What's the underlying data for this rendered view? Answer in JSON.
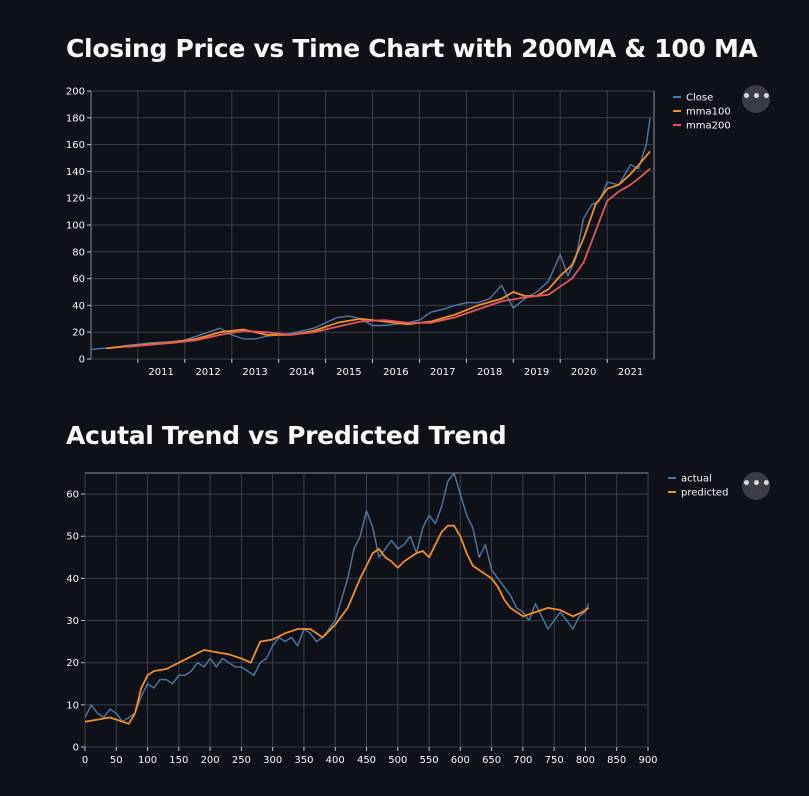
{
  "page": {
    "charts": [
      {
        "title": "Closing Price vs Time Chart with 200MA & 100 MA",
        "more_button": "•••"
      },
      {
        "title": "Acutal Trend vs Predicted Trend",
        "more_button": "•••"
      }
    ]
  },
  "colors": {
    "background": "#0e1117",
    "blue": "#4e79a7",
    "orange": "#f28e2b",
    "red": "#e15759",
    "grid": "#3a3f4b",
    "text": "#fafafa"
  },
  "chart_data": [
    {
      "type": "line",
      "title": "Closing Price vs Time Chart with 200MA & 100 MA",
      "x_type": "date",
      "xlim": [
        "2010-01-01",
        "2021-12-31"
      ],
      "ylim": [
        0,
        200
      ],
      "x_ticks": [
        "2011",
        "2012",
        "2013",
        "2014",
        "2015",
        "2016",
        "2017",
        "2018",
        "2019",
        "2020",
        "2021"
      ],
      "y_ticks": [
        0,
        20,
        40,
        60,
        80,
        100,
        120,
        140,
        160,
        180,
        200
      ],
      "grid": true,
      "legend_position": "top-right",
      "series": [
        {
          "name": "Close",
          "color": "#4e79a7",
          "x": [
            "2010-01",
            "2010-04",
            "2010-07",
            "2010-10",
            "2011-01",
            "2011-04",
            "2011-07",
            "2011-10",
            "2012-01",
            "2012-04",
            "2012-07",
            "2012-10",
            "2013-01",
            "2013-04",
            "2013-07",
            "2013-10",
            "2014-01",
            "2014-04",
            "2014-07",
            "2014-10",
            "2015-01",
            "2015-04",
            "2015-07",
            "2015-10",
            "2016-01",
            "2016-04",
            "2016-07",
            "2016-10",
            "2017-01",
            "2017-04",
            "2017-07",
            "2017-10",
            "2018-01",
            "2018-04",
            "2018-07",
            "2018-10",
            "2019-01",
            "2019-04",
            "2019-07",
            "2019-10",
            "2020-01",
            "2020-03",
            "2020-05",
            "2020-07",
            "2020-09",
            "2020-11",
            "2021-01",
            "2021-04",
            "2021-07",
            "2021-09",
            "2021-11",
            "2021-12"
          ],
          "y": [
            7,
            8,
            8.5,
            10,
            11,
            12,
            12.5,
            13,
            14,
            17,
            20,
            23,
            18,
            15,
            15,
            17,
            18,
            19,
            21,
            23,
            27,
            31,
            32,
            30,
            25,
            25,
            26,
            27,
            29,
            35,
            37,
            40,
            42,
            42,
            45,
            55,
            38,
            45,
            50,
            58,
            78,
            62,
            75,
            105,
            115,
            118,
            132,
            130,
            145,
            142,
            160,
            180
          ]
        },
        {
          "name": "mma100",
          "color": "#f28e2b",
          "x": [
            "2010-05",
            "2010-10",
            "2011-04",
            "2011-10",
            "2012-04",
            "2012-10",
            "2013-04",
            "2013-10",
            "2014-04",
            "2014-10",
            "2015-04",
            "2015-10",
            "2016-04",
            "2016-10",
            "2017-04",
            "2017-10",
            "2018-04",
            "2018-10",
            "2019-01",
            "2019-04",
            "2019-07",
            "2019-10",
            "2020-01",
            "2020-04",
            "2020-07",
            "2020-10",
            "2021-01",
            "2021-04",
            "2021-07",
            "2021-10",
            "2021-12"
          ],
          "y": [
            8,
            9.5,
            11,
            12.5,
            15,
            20,
            22,
            18,
            18,
            21,
            27,
            30,
            28,
            26,
            28,
            33,
            40,
            45,
            50,
            47,
            47,
            52,
            62,
            70,
            90,
            115,
            127,
            130,
            138,
            148,
            155
          ]
        },
        {
          "name": "mma200",
          "color": "#e15759",
          "x": [
            "2010-10",
            "2011-04",
            "2011-10",
            "2012-04",
            "2012-10",
            "2013-04",
            "2013-10",
            "2014-04",
            "2014-10",
            "2015-04",
            "2015-10",
            "2016-04",
            "2016-10",
            "2017-04",
            "2017-10",
            "2018-04",
            "2018-10",
            "2019-04",
            "2019-10",
            "2020-04",
            "2020-07",
            "2020-10",
            "2021-01",
            "2021-04",
            "2021-07",
            "2021-10",
            "2021-12"
          ],
          "y": [
            9,
            10.5,
            12,
            14,
            18,
            21,
            20,
            18,
            20,
            24,
            28,
            29,
            27,
            27,
            31,
            37,
            43,
            46,
            48,
            60,
            72,
            95,
            118,
            125,
            130,
            137,
            142
          ]
        }
      ]
    },
    {
      "type": "line",
      "title": "Acutal Trend vs Predicted Trend",
      "xlim": [
        0,
        900
      ],
      "ylim": [
        0,
        65
      ],
      "x_ticks": [
        0,
        50,
        100,
        150,
        200,
        250,
        300,
        350,
        400,
        450,
        500,
        550,
        600,
        650,
        700,
        750,
        800,
        850,
        900
      ],
      "y_ticks": [
        0,
        10,
        20,
        30,
        40,
        50,
        60
      ],
      "grid": true,
      "legend_position": "top-right",
      "series": [
        {
          "name": "actual",
          "color": "#4e79a7",
          "x": [
            0,
            10,
            20,
            30,
            40,
            50,
            60,
            70,
            80,
            90,
            100,
            110,
            120,
            130,
            140,
            150,
            160,
            170,
            180,
            190,
            200,
            210,
            220,
            230,
            240,
            250,
            260,
            270,
            280,
            290,
            300,
            310,
            320,
            330,
            340,
            350,
            360,
            370,
            380,
            390,
            400,
            410,
            420,
            430,
            440,
            450,
            460,
            470,
            480,
            490,
            500,
            510,
            520,
            530,
            540,
            550,
            560,
            570,
            580,
            590,
            600,
            610,
            620,
            630,
            640,
            650,
            660,
            670,
            680,
            690,
            700,
            710,
            720,
            730,
            740,
            750,
            760,
            770,
            780,
            790,
            800,
            805
          ],
          "y": [
            7,
            10,
            8,
            7,
            9,
            8,
            6,
            7,
            8,
            12,
            15,
            14,
            16,
            16,
            15,
            17,
            17,
            18,
            20,
            19,
            21,
            19,
            21,
            20,
            19,
            19,
            18,
            17,
            20,
            21,
            24,
            26,
            25,
            26,
            24,
            28,
            27,
            25,
            26,
            28,
            30,
            35,
            40,
            47,
            50,
            56,
            52,
            45,
            47,
            49,
            47,
            48,
            50,
            46,
            52,
            55,
            53,
            57,
            63,
            65,
            60,
            55,
            52,
            45,
            48,
            42,
            40,
            38,
            36,
            33,
            32,
            30,
            34,
            31,
            28,
            30,
            32,
            30,
            28,
            31,
            32,
            34
          ]
        },
        {
          "name": "predicted",
          "color": "#f28e2b",
          "x": [
            0,
            20,
            40,
            60,
            70,
            80,
            90,
            100,
            110,
            130,
            150,
            170,
            190,
            210,
            230,
            250,
            265,
            280,
            300,
            320,
            340,
            360,
            380,
            400,
            420,
            440,
            460,
            470,
            480,
            490,
            500,
            510,
            520,
            530,
            540,
            550,
            560,
            570,
            580,
            590,
            600,
            610,
            620,
            630,
            640,
            650,
            660,
            670,
            680,
            700,
            720,
            740,
            760,
            780,
            795,
            805
          ],
          "y": [
            6,
            6.5,
            7,
            6,
            5.5,
            8,
            14,
            17,
            18,
            18.5,
            20,
            21.5,
            23,
            22.5,
            22,
            21,
            20,
            25,
            25.5,
            27,
            28,
            28,
            26,
            29,
            33,
            40,
            46,
            47,
            45,
            44,
            42.5,
            44,
            45,
            46,
            46.5,
            45,
            48,
            51,
            52.5,
            52.5,
            50,
            46,
            43,
            42,
            41,
            40,
            38,
            35,
            33,
            31,
            32,
            33,
            32.5,
            31,
            32,
            33
          ]
        }
      ]
    }
  ]
}
